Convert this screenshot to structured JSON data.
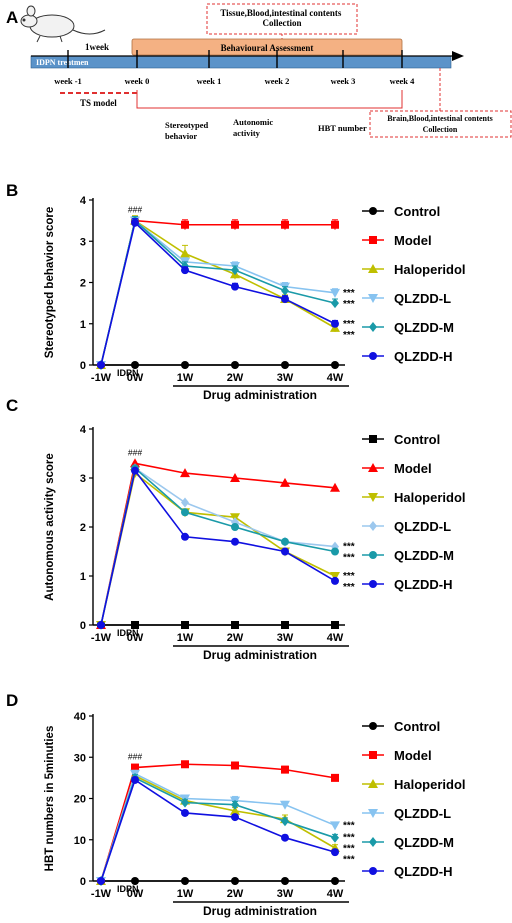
{
  "panel_a": {
    "label": "A",
    "top_note": "Tissue,Blood,intestinal contents\nCollection",
    "behaviour_label": "Behavioural Assessment",
    "week_span_label": "1week",
    "idpn_label": "IDPN treatmen",
    "weeks": [
      "week -1",
      "week 0",
      "week 1",
      "week 2",
      "week 3",
      "week 4"
    ],
    "ts_model_label": "TS  model",
    "measures": [
      "Stereotyped\nbehavior",
      "Autonomic\nactivity",
      "HBT number"
    ],
    "final_note": "Brain,Blood,intestinal contents\nCollection",
    "colors": {
      "timeline": "#5b93c9",
      "assessment": "#f4b183",
      "dashed": "#e03030"
    }
  },
  "chart_data": [
    {
      "panel": "B",
      "type": "line",
      "x": [
        "-1W",
        "0W",
        "1W",
        "2W",
        "3W",
        "4W"
      ],
      "ylabel": "Stereotyped behavior score",
      "xlabel": "Drug administration",
      "idpn_label": "IDPN",
      "ylim": [
        0,
        4
      ],
      "yticks": [
        0,
        1,
        2,
        3,
        4
      ],
      "annotation_peak": "###",
      "series": [
        {
          "name": "Control",
          "color": "#000000",
          "marker": "circle",
          "values": [
            0,
            0,
            0,
            0,
            0,
            0
          ],
          "err": [
            0,
            0,
            0,
            0,
            0,
            0
          ]
        },
        {
          "name": "Model",
          "color": "#ff0000",
          "marker": "square",
          "values": [
            0,
            3.5,
            3.4,
            3.4,
            3.4,
            3.4
          ],
          "err": [
            0,
            0.1,
            0.12,
            0.12,
            0.12,
            0.12
          ]
        },
        {
          "name": "Haloperidol",
          "color": "#bfbf00",
          "marker": "triangle",
          "values": [
            0,
            3.5,
            2.7,
            2.2,
            1.6,
            0.9
          ],
          "err": [
            0,
            0.12,
            0.2,
            0.12,
            0.1,
            0.1
          ]
        },
        {
          "name": "QLZDD-L",
          "color": "#87c3f0",
          "marker": "triangle-down",
          "values": [
            0,
            3.5,
            2.5,
            2.4,
            1.9,
            1.75
          ],
          "err": [
            0,
            0.1,
            0.1,
            0.1,
            0.1,
            0.1
          ]
        },
        {
          "name": "QLZDD-M",
          "color": "#1a9aa8",
          "marker": "diamond",
          "values": [
            0,
            3.5,
            2.4,
            2.3,
            1.8,
            1.5
          ],
          "err": [
            0,
            0.1,
            0.1,
            0.1,
            0.1,
            0.1
          ]
        },
        {
          "name": "QLZDD-H",
          "color": "#1010e0",
          "marker": "circle",
          "values": [
            0,
            3.45,
            2.3,
            1.9,
            1.6,
            1.0
          ],
          "err": [
            0,
            0.1,
            0.08,
            0.08,
            0.08,
            0.08
          ]
        }
      ],
      "sig": [
        {
          "series": "QLZDD-L",
          "text": "***"
        },
        {
          "series": "QLZDD-M",
          "text": "***"
        },
        {
          "series": "QLZDD-H",
          "text": "***"
        },
        {
          "series": "Haloperidol",
          "text": "***"
        }
      ]
    },
    {
      "panel": "C",
      "type": "line",
      "x": [
        "-1W",
        "0W",
        "1W",
        "2W",
        "3W",
        "4W"
      ],
      "ylabel": "Autonomous activity score",
      "xlabel": "Drug administration",
      "idpn_label": "IDPN",
      "ylim": [
        0,
        4
      ],
      "yticks": [
        0,
        1,
        2,
        3,
        4
      ],
      "annotation_peak": "###",
      "series": [
        {
          "name": "Control",
          "color": "#000000",
          "marker": "square",
          "values": [
            0,
            0,
            0,
            0,
            0,
            0
          ],
          "err": [
            0,
            0,
            0,
            0,
            0,
            0
          ]
        },
        {
          "name": "Model",
          "color": "#ff0000",
          "marker": "triangle",
          "values": [
            0,
            3.3,
            3.1,
            3.0,
            2.9,
            2.8
          ],
          "err": [
            0,
            0,
            0,
            0,
            0,
            0
          ]
        },
        {
          "name": "Haloperidol",
          "color": "#bfbf00",
          "marker": "triangle-down",
          "values": [
            0,
            3.1,
            2.3,
            2.2,
            1.5,
            1.0
          ],
          "err": [
            0,
            0,
            0,
            0,
            0,
            0
          ]
        },
        {
          "name": "QLZDD-L",
          "color": "#9cc8ee",
          "marker": "diamond",
          "values": [
            0,
            3.2,
            2.5,
            2.1,
            1.7,
            1.6
          ],
          "err": [
            0,
            0,
            0,
            0,
            0,
            0
          ]
        },
        {
          "name": "QLZDD-M",
          "color": "#1a9aa8",
          "marker": "circle",
          "values": [
            0,
            3.2,
            2.3,
            2.0,
            1.7,
            1.5
          ],
          "err": [
            0,
            0,
            0,
            0,
            0,
            0
          ]
        },
        {
          "name": "QLZDD-H",
          "color": "#1010e0",
          "marker": "circle",
          "values": [
            0,
            3.15,
            1.8,
            1.7,
            1.5,
            0.9
          ],
          "err": [
            0,
            0,
            0,
            0,
            0,
            0
          ]
        }
      ],
      "sig": [
        {
          "series": "QLZDD-L",
          "text": "***"
        },
        {
          "series": "QLZDD-M",
          "text": "***"
        },
        {
          "series": "Haloperidol",
          "text": "***"
        },
        {
          "series": "QLZDD-H",
          "text": "***"
        }
      ]
    },
    {
      "panel": "D",
      "type": "line",
      "x": [
        "-1W",
        "0W",
        "1W",
        "2W",
        "3W",
        "4W"
      ],
      "ylabel": "HBT numbers in 5minuties",
      "xlabel": "Drug administration",
      "idpn_label": "IDPN",
      "ylim": [
        0,
        40
      ],
      "yticks": [
        0,
        10,
        20,
        30,
        40
      ],
      "annotation_peak": "###",
      "series": [
        {
          "name": "Control",
          "color": "#000000",
          "marker": "circle",
          "values": [
            0,
            0,
            0,
            0,
            0,
            0
          ],
          "err": [
            0,
            0,
            0,
            0,
            0,
            0
          ]
        },
        {
          "name": "Model",
          "color": "#ff0000",
          "marker": "square",
          "values": [
            0,
            27.5,
            28.3,
            28.0,
            27.0,
            25.0
          ],
          "err": [
            0,
            0.6,
            0.6,
            0.8,
            0.8,
            0.6
          ]
        },
        {
          "name": "Haloperidol",
          "color": "#bfbf00",
          "marker": "triangle",
          "values": [
            0,
            25.5,
            19.5,
            17.0,
            15.0,
            8.0
          ],
          "err": [
            0,
            0.8,
            0.8,
            0.8,
            1.0,
            0.8
          ]
        },
        {
          "name": "QLZDD-L",
          "color": "#87c3f0",
          "marker": "triangle-down",
          "values": [
            0,
            26.0,
            20.0,
            19.5,
            18.5,
            13.5
          ],
          "err": [
            0,
            0.8,
            0.8,
            1.0,
            0.8,
            0.8
          ]
        },
        {
          "name": "QLZDD-M",
          "color": "#1a9aa8",
          "marker": "diamond",
          "values": [
            0,
            25.0,
            19.0,
            18.5,
            14.5,
            10.5
          ],
          "err": [
            0,
            0.8,
            0.8,
            0.8,
            0.8,
            0.8
          ]
        },
        {
          "name": "QLZDD-H",
          "color": "#1010e0",
          "marker": "circle",
          "values": [
            0,
            24.5,
            16.5,
            15.5,
            10.5,
            7.0
          ],
          "err": [
            0,
            0.6,
            0.6,
            0.6,
            0.6,
            0.6
          ]
        }
      ],
      "sig": [
        {
          "series": "QLZDD-L",
          "text": "***"
        },
        {
          "series": "QLZDD-M",
          "text": "***"
        },
        {
          "series": "Haloperidol",
          "text": "***"
        },
        {
          "series": "QLZDD-H",
          "text": "***"
        }
      ]
    }
  ]
}
